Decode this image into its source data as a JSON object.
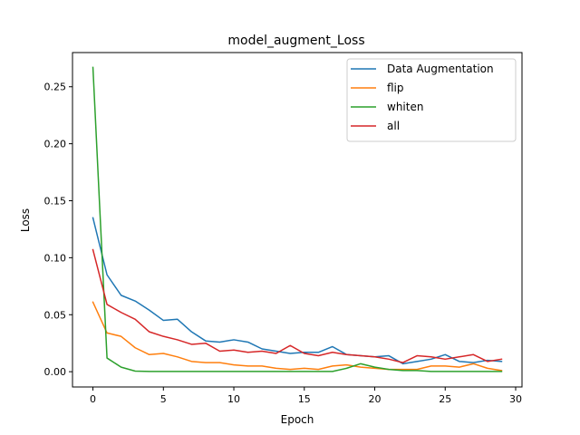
{
  "chart_data": {
    "type": "line",
    "title": "model_augment_Loss",
    "xlabel": "Epoch",
    "ylabel": "Loss",
    "xlim": [
      -1.45,
      30.45
    ],
    "ylim": [
      -0.0134,
      0.28
    ],
    "xticks": [
      0,
      5,
      10,
      15,
      20,
      25,
      30
    ],
    "xtick_labels": [
      "0",
      "5",
      "10",
      "15",
      "20",
      "25",
      "30"
    ],
    "yticks": [
      0.0,
      0.05,
      0.1,
      0.15,
      0.2,
      0.25
    ],
    "ytick_labels": [
      "0.00",
      "0.05",
      "0.10",
      "0.15",
      "0.20",
      "0.25"
    ],
    "legend_position": "top-right",
    "x": [
      0,
      1,
      2,
      3,
      4,
      5,
      6,
      7,
      8,
      9,
      10,
      11,
      12,
      13,
      14,
      15,
      16,
      17,
      18,
      19,
      20,
      21,
      22,
      23,
      24,
      25,
      26,
      27,
      28,
      29
    ],
    "series": [
      {
        "name": "Data Augmentation",
        "color": "#1f77b4",
        "values": [
          0.135,
          0.085,
          0.067,
          0.062,
          0.054,
          0.045,
          0.046,
          0.035,
          0.027,
          0.026,
          0.028,
          0.026,
          0.02,
          0.018,
          0.016,
          0.017,
          0.017,
          0.022,
          0.015,
          0.014,
          0.013,
          0.014,
          0.007,
          0.009,
          0.011,
          0.015,
          0.009,
          0.008,
          0.01,
          0.009
        ]
      },
      {
        "name": "flip",
        "color": "#ff7f0e",
        "values": [
          0.061,
          0.034,
          0.031,
          0.021,
          0.015,
          0.016,
          0.013,
          0.009,
          0.008,
          0.008,
          0.006,
          0.005,
          0.005,
          0.003,
          0.002,
          0.003,
          0.002,
          0.005,
          0.006,
          0.004,
          0.003,
          0.002,
          0.002,
          0.002,
          0.005,
          0.005,
          0.004,
          0.007,
          0.003,
          0.001
        ]
      },
      {
        "name": "whiten",
        "color": "#2ca02c",
        "values": [
          0.267,
          0.012,
          0.004,
          0.0005,
          0.0002,
          0.0002,
          0.0002,
          0.0002,
          0.0002,
          0.0002,
          0.0002,
          0.0002,
          0.0002,
          0.0002,
          0.0002,
          0.0002,
          0.0002,
          0.0002,
          0.003,
          0.007,
          0.004,
          0.002,
          0.001,
          0.001,
          0.0002,
          0.0002,
          0.0002,
          0.0002,
          0.0002,
          0.0002
        ]
      },
      {
        "name": "all",
        "color": "#d62728",
        "values": [
          0.107,
          0.059,
          0.052,
          0.046,
          0.035,
          0.031,
          0.028,
          0.024,
          0.025,
          0.018,
          0.019,
          0.017,
          0.018,
          0.016,
          0.023,
          0.016,
          0.014,
          0.017,
          0.015,
          0.014,
          0.013,
          0.011,
          0.008,
          0.014,
          0.013,
          0.011,
          0.013,
          0.015,
          0.009,
          0.011
        ]
      }
    ]
  }
}
